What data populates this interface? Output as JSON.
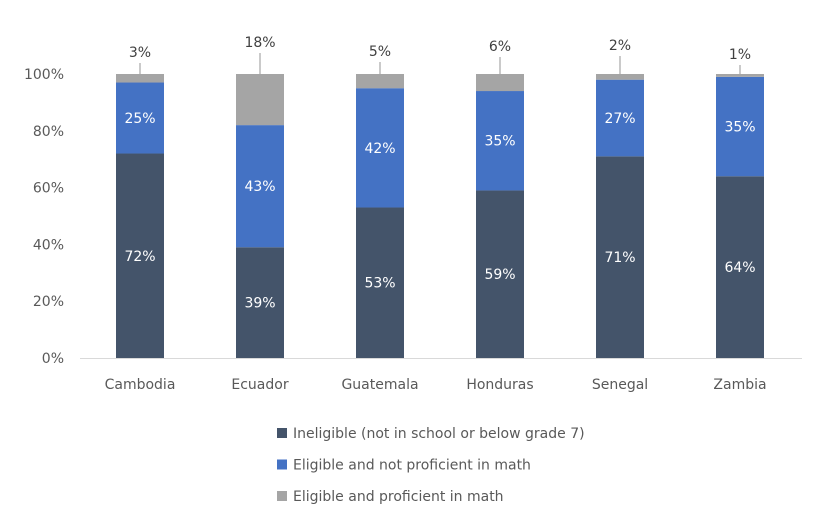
{
  "chart_data": {
    "type": "bar",
    "stacked": true,
    "categories": [
      "Cambodia",
      "Ecuador",
      "Guatemala",
      "Honduras",
      "Senegal",
      "Zambia"
    ],
    "series": [
      {
        "name": "Ineligible (not in school or below grade 7)",
        "values": [
          72,
          39,
          53,
          59,
          71,
          64
        ],
        "color": "#44546a"
      },
      {
        "name": "Eligible and not proficient in math",
        "values": [
          25,
          43,
          42,
          35,
          27,
          35
        ],
        "color": "#4472c4"
      },
      {
        "name": "Eligible and proficient in math",
        "values": [
          3,
          18,
          5,
          6,
          2,
          1
        ],
        "color": "#a5a5a5"
      }
    ],
    "ylim": [
      0,
      100
    ],
    "yticks": [
      "0%",
      "20%",
      "40%",
      "60%",
      "80%",
      "100%"
    ],
    "value_suffix": "%",
    "grid": false,
    "legend": "bottom",
    "title": "",
    "xlabel": "",
    "ylabel": ""
  }
}
